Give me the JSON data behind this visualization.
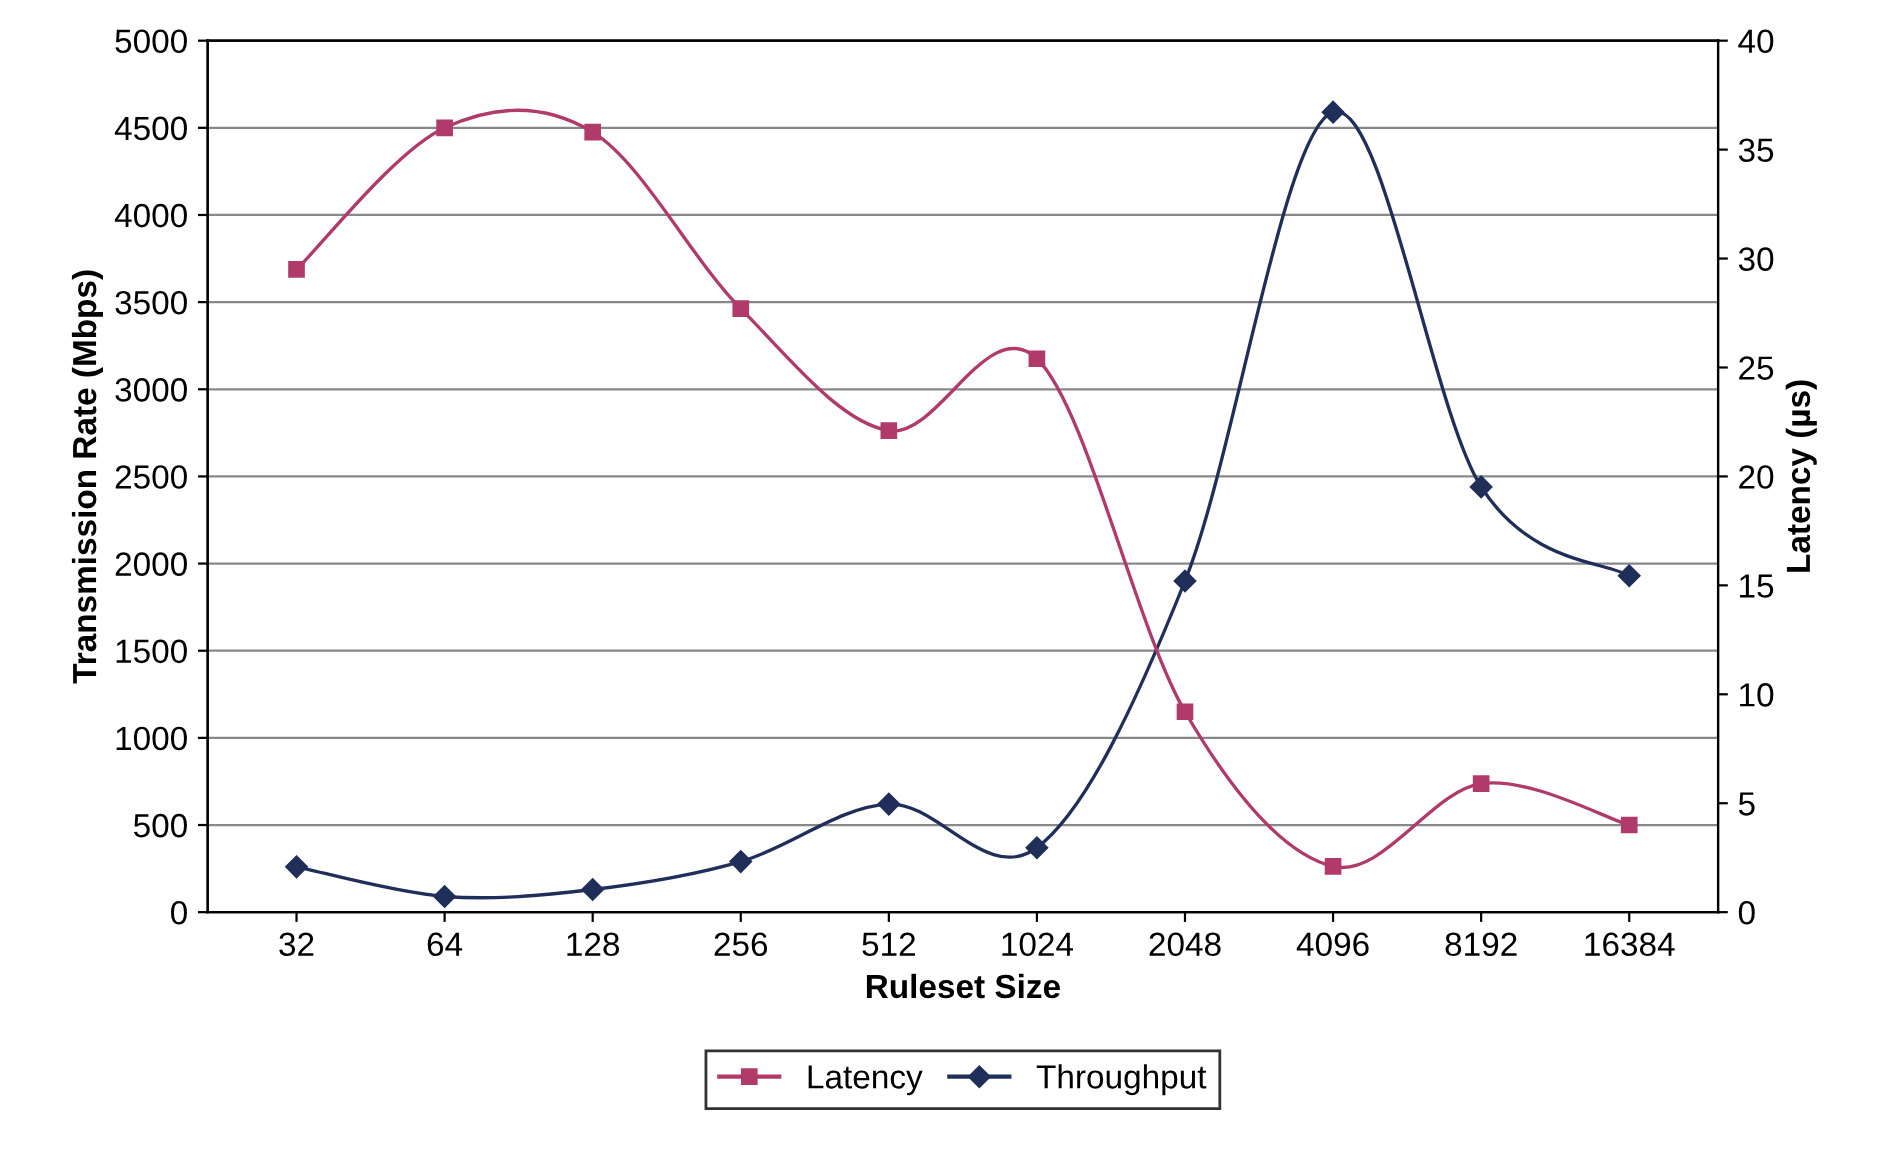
{
  "chart_data": {
    "type": "line",
    "xlabel": "Ruleset Size",
    "ylabel": "Transmission Rate (Mbps)",
    "y2label": "Latency (µs)",
    "categories": [
      "32",
      "64",
      "128",
      "256",
      "512",
      "1024",
      "2048",
      "4096",
      "8192",
      "16384"
    ],
    "series": [
      {
        "name": "Latency",
        "color": "#b03a6a",
        "marker": "square",
        "axis": "y2",
        "values": [
          29.5,
          36,
          35.8,
          27.7,
          22.1,
          25.4,
          9.2,
          2.1,
          5.9,
          4.0
        ]
      },
      {
        "name": "Throughput",
        "color": "#1f2f5a",
        "marker": "diamond",
        "values": [
          260,
          90,
          130,
          290,
          620,
          370,
          1900,
          4590,
          2440,
          1930
        ]
      }
    ],
    "ylim": [
      0,
      5000
    ],
    "yticks": [
      0,
      500,
      1000,
      1500,
      2000,
      2500,
      3000,
      3500,
      4000,
      4500,
      5000
    ],
    "y2lim": [
      0,
      40
    ],
    "y2ticks": [
      0,
      5,
      10,
      15,
      20,
      25,
      30,
      35,
      40
    ],
    "grid": "y",
    "legend": "bottom",
    "line_style": "solid"
  }
}
